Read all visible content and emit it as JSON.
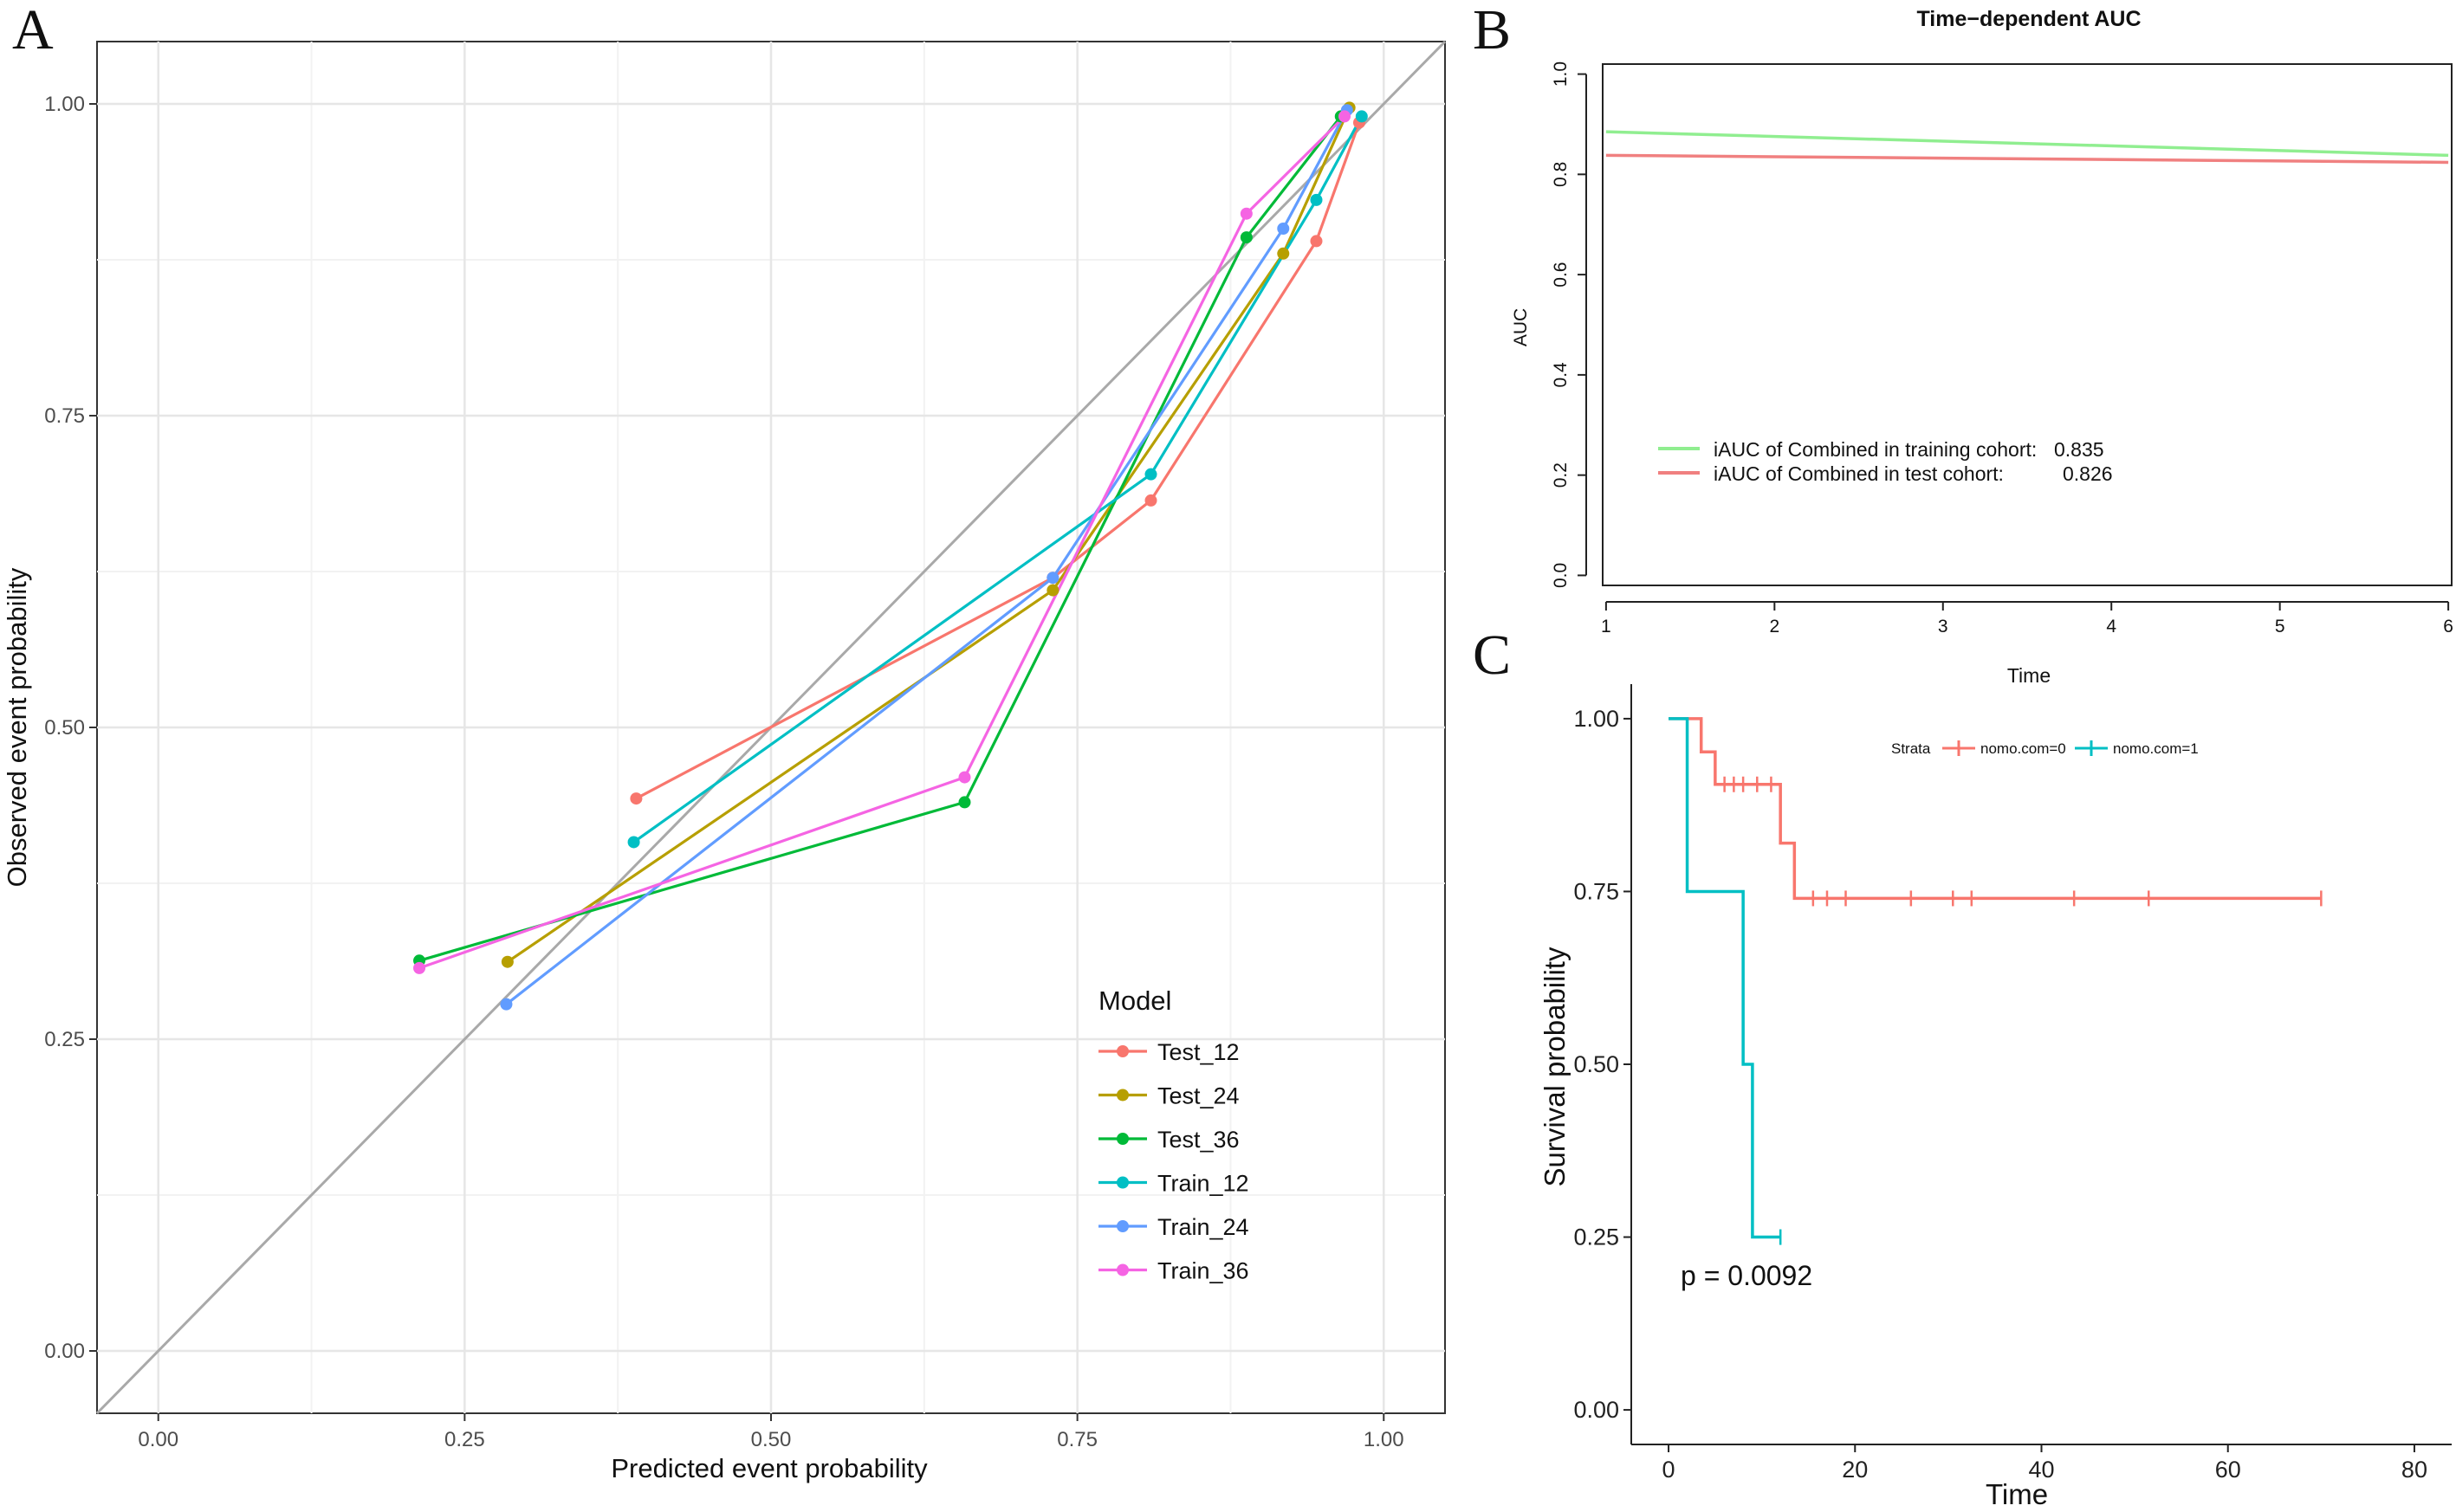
{
  "panel_labels": {
    "a": "A",
    "b": "B",
    "c": "C"
  },
  "chart_data": [
    {
      "type": "line",
      "panel": "A",
      "title": "",
      "xlabel": "Predicted event probability",
      "ylabel": "Observed event probability",
      "xlim": [
        -0.05,
        1.05
      ],
      "ylim": [
        -0.05,
        1.05
      ],
      "xticks": [
        0,
        0.25,
        0.5,
        0.75,
        1
      ],
      "xtick_labels": [
        "0.00",
        "0.25",
        "0.50",
        "0.75",
        "1.00"
      ],
      "yticks": [
        0,
        0.25,
        0.5,
        0.75,
        1
      ],
      "ytick_labels": [
        "0.00",
        "0.25",
        "0.50",
        "0.75",
        "1.00"
      ],
      "reference_line": "y = x",
      "grid": true,
      "legend": {
        "title": "Model",
        "placement": "bottom-right"
      },
      "series": [
        {
          "name": "Test_12",
          "color": "#F8766D",
          "x": [
            0.39,
            0.73,
            0.81,
            0.945,
            0.98
          ],
          "y": [
            0.443,
            0.62,
            0.682,
            0.89,
            0.985
          ]
        },
        {
          "name": "Test_24",
          "color": "#B79F00",
          "x": [
            0.285,
            0.73,
            0.918,
            0.972
          ],
          "y": [
            0.312,
            0.61,
            0.88,
            0.997
          ]
        },
        {
          "name": "Test_36",
          "color": "#00BA38",
          "x": [
            0.213,
            0.658,
            0.888,
            0.965
          ],
          "y": [
            0.313,
            0.44,
            0.893,
            0.99
          ]
        },
        {
          "name": "Train_12",
          "color": "#00BFC4",
          "x": [
            0.388,
            0.81,
            0.945,
            0.982
          ],
          "y": [
            0.408,
            0.703,
            0.923,
            0.99
          ]
        },
        {
          "name": "Train_24",
          "color": "#619CFF",
          "x": [
            0.284,
            0.73,
            0.918,
            0.97
          ],
          "y": [
            0.278,
            0.62,
            0.9,
            0.995
          ]
        },
        {
          "name": "Train_36",
          "color": "#F564E3",
          "x": [
            0.213,
            0.658,
            0.888,
            0.968
          ],
          "y": [
            0.307,
            0.46,
            0.912,
            0.99
          ]
        }
      ]
    },
    {
      "type": "line",
      "panel": "B",
      "title": "Time−dependent AUC",
      "xlabel": "Time",
      "ylabel": "AUC",
      "xlim": [
        0.98,
        6.02
      ],
      "ylim": [
        -0.02,
        1.02
      ],
      "xticks": [
        1,
        2,
        3,
        4,
        5,
        6
      ],
      "xtick_labels": [
        "1",
        "2",
        "3",
        "4",
        "5",
        "6"
      ],
      "yticks": [
        0,
        0.2,
        0.4,
        0.6,
        0.8,
        1
      ],
      "ytick_labels": [
        "0.0",
        "0.2",
        "0.4",
        "0.6",
        "0.8",
        "1.0"
      ],
      "grid": false,
      "legend": {
        "placement": "bottom-left"
      },
      "series": [
        {
          "name": "iAUC of Combined in training cohort:",
          "value_label": "0.835",
          "color": "#90EE90",
          "x": [
            1,
            6
          ],
          "y": [
            0.885,
            0.838
          ]
        },
        {
          "name": "iAUC of Combined in test cohort:",
          "value_label": "0.826",
          "color": "#F08080",
          "x": [
            1,
            6
          ],
          "y": [
            0.838,
            0.824
          ]
        }
      ]
    },
    {
      "type": "line",
      "panel": "C",
      "title": "",
      "xlabel": "Time",
      "ylabel": "Survival probability",
      "xlim": [
        -4,
        84
      ],
      "ylim": [
        -0.05,
        1.05
      ],
      "xticks": [
        0,
        20,
        40,
        60,
        80
      ],
      "xtick_labels": [
        "0",
        "20",
        "40",
        "60",
        "80"
      ],
      "yticks": [
        0,
        0.25,
        0.5,
        0.75,
        1
      ],
      "ytick_labels": [
        "0.00",
        "0.25",
        "0.50",
        "0.75",
        "1.00"
      ],
      "annotation": "p = 0.0092",
      "legend": {
        "title": "Strata",
        "placement": "top-center"
      },
      "series": [
        {
          "name": "nomo.com=0",
          "color": "#F8766D",
          "step_x": [
            0,
            3.5,
            3.5,
            5,
            5,
            12,
            12,
            13.5,
            13.5,
            70
          ],
          "step_y": [
            1,
            1,
            0.952,
            0.952,
            0.905,
            0.905,
            0.82,
            0.82,
            0.74,
            0.74
          ],
          "censor_x": [
            6,
            7,
            8,
            9.5,
            11,
            15.5,
            17,
            19,
            26,
            30.5,
            32.5,
            43.5,
            51.5,
            70
          ],
          "censor_y": [
            0.905,
            0.905,
            0.905,
            0.905,
            0.905,
            0.74,
            0.74,
            0.74,
            0.74,
            0.74,
            0.74,
            0.74,
            0.74,
            0.74
          ]
        },
        {
          "name": "nomo.com=1",
          "color": "#00BFC4",
          "step_x": [
            0,
            2,
            2,
            8,
            8,
            9,
            9,
            12
          ],
          "step_y": [
            1,
            1,
            0.75,
            0.75,
            0.5,
            0.5,
            0.25,
            0.25
          ],
          "censor_x": [
            12
          ],
          "censor_y": [
            0.25
          ]
        }
      ]
    }
  ]
}
